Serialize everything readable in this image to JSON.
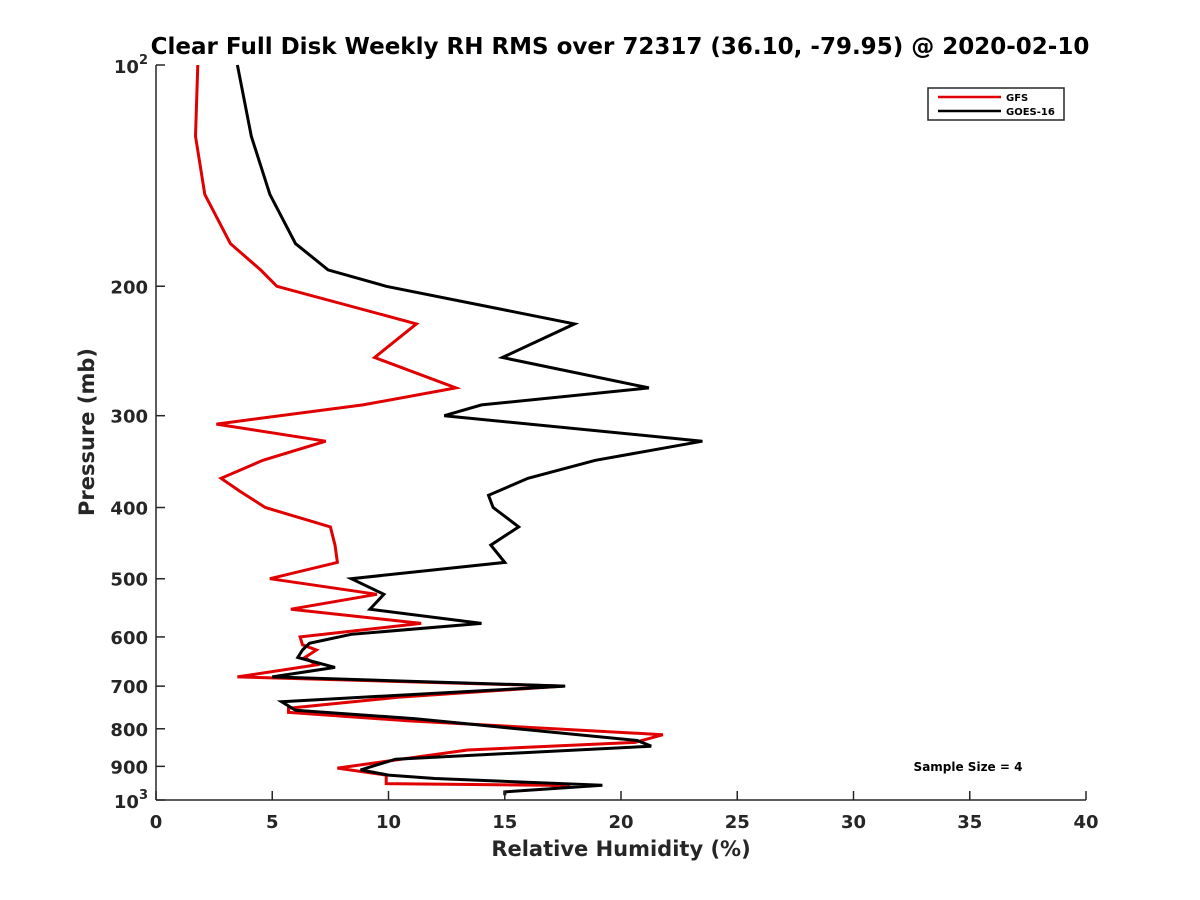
{
  "chart_data": {
    "type": "line",
    "title": "Clear Full Disk Weekly RH RMS over 72317 (36.10, -79.95) @ 2020-02-10",
    "xlabel": "Relative Humidity (%)",
    "ylabel": "Pressure (mb)",
    "xlim": [
      0,
      40
    ],
    "ylim": [
      100,
      1000
    ],
    "y_scale": "log",
    "y_reversed": true,
    "x_ticks": [
      "0",
      "5",
      "10",
      "15",
      "20",
      "25",
      "30",
      "35",
      "40"
    ],
    "y_ticks": [
      {
        "value": 100,
        "base": "10",
        "exp": "2"
      },
      {
        "value": 200,
        "label": "200"
      },
      {
        "value": 300,
        "label": "300"
      },
      {
        "value": 400,
        "label": "400"
      },
      {
        "value": 500,
        "label": "500"
      },
      {
        "value": 600,
        "label": "600"
      },
      {
        "value": 700,
        "label": "700"
      },
      {
        "value": 800,
        "label": "800"
      },
      {
        "value": 900,
        "label": "900"
      },
      {
        "value": 1000,
        "base": "10",
        "exp": "3"
      }
    ],
    "legend_position": "top-right",
    "annotation": "Sample Size = 4",
    "series": [
      {
        "name": "GFS",
        "color": "#e00000",
        "points": [
          [
            1.8,
            100
          ],
          [
            1.7,
            125
          ],
          [
            2.1,
            150
          ],
          [
            3.2,
            175
          ],
          [
            4.5,
            190
          ],
          [
            5.2,
            200
          ],
          [
            11.2,
            225
          ],
          [
            9.4,
            250
          ],
          [
            12.9,
            275
          ],
          [
            8.9,
            290
          ],
          [
            2.6,
            308
          ],
          [
            7.3,
            325
          ],
          [
            4.6,
            345
          ],
          [
            2.8,
            365
          ],
          [
            3.6,
            380
          ],
          [
            4.7,
            400
          ],
          [
            7.5,
            425
          ],
          [
            7.7,
            450
          ],
          [
            7.8,
            475
          ],
          [
            4.9,
            500
          ],
          [
            9.5,
            525
          ],
          [
            5.8,
            550
          ],
          [
            11.4,
            575
          ],
          [
            6.2,
            600
          ],
          [
            6.3,
            615
          ],
          [
            6.9,
            625
          ],
          [
            6.4,
            640
          ],
          [
            6.9,
            655
          ],
          [
            3.5,
            680
          ],
          [
            17.5,
            700
          ],
          [
            10.4,
            725
          ],
          [
            5.7,
            750
          ],
          [
            5.7,
            760
          ],
          [
            10.8,
            780
          ],
          [
            21.8,
            815
          ],
          [
            20.6,
            835
          ],
          [
            13.4,
            855
          ],
          [
            7.8,
            905
          ],
          [
            9.9,
            925
          ],
          [
            9.9,
            950
          ],
          [
            16.9,
            955
          ],
          [
            17.8,
            960
          ]
        ]
      },
      {
        "name": "GOES-16",
        "color": "#000000",
        "points": [
          [
            3.5,
            100
          ],
          [
            4.1,
            125
          ],
          [
            4.9,
            150
          ],
          [
            6.0,
            175
          ],
          [
            7.4,
            190
          ],
          [
            9.9,
            200
          ],
          [
            18.0,
            225
          ],
          [
            14.9,
            250
          ],
          [
            21.2,
            275
          ],
          [
            14.0,
            290
          ],
          [
            12.4,
            300
          ],
          [
            23.5,
            325
          ],
          [
            18.9,
            345
          ],
          [
            16.0,
            365
          ],
          [
            14.3,
            385
          ],
          [
            14.5,
            400
          ],
          [
            15.6,
            425
          ],
          [
            14.4,
            450
          ],
          [
            15.0,
            475
          ],
          [
            8.4,
            500
          ],
          [
            9.8,
            525
          ],
          [
            9.2,
            550
          ],
          [
            14.0,
            575
          ],
          [
            8.4,
            595
          ],
          [
            6.6,
            612
          ],
          [
            6.3,
            625
          ],
          [
            6.1,
            640
          ],
          [
            6.5,
            645
          ],
          [
            7.7,
            660
          ],
          [
            5.0,
            680
          ],
          [
            17.6,
            700
          ],
          [
            5.4,
            735
          ],
          [
            6.0,
            755
          ],
          [
            11.1,
            775
          ],
          [
            13.8,
            790
          ],
          [
            20.7,
            830
          ],
          [
            21.3,
            845
          ],
          [
            10.3,
            880
          ],
          [
            8.8,
            910
          ],
          [
            10.0,
            925
          ],
          [
            12.0,
            935
          ],
          [
            19.2,
            955
          ],
          [
            15.0,
            975
          ],
          [
            15.0,
            985
          ]
        ]
      }
    ]
  }
}
